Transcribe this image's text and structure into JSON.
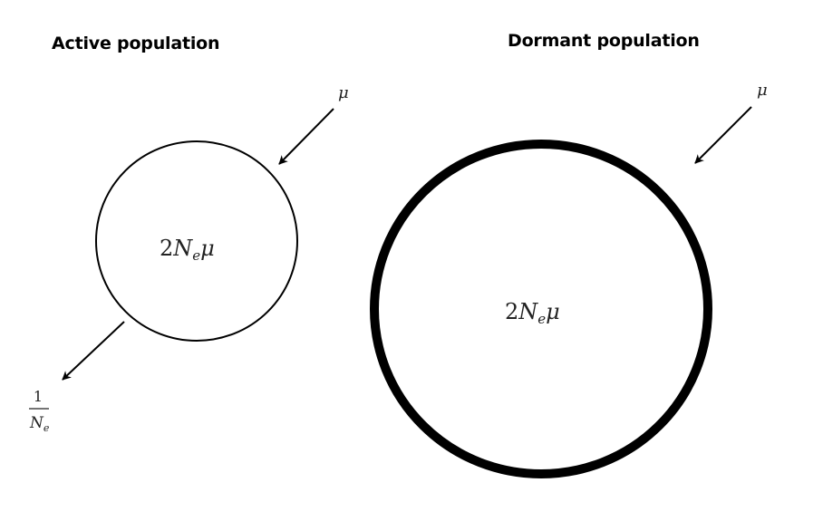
{
  "populations": {
    "active": {
      "title": "Active population",
      "inner": {
        "lead": "2",
        "symbol": "N",
        "sub": "e",
        "tail": "μ"
      },
      "inflow": "μ",
      "outflow": {
        "numerator": "1",
        "denominator": "N",
        "sub": "e"
      }
    },
    "dormant": {
      "title": "Dormant population",
      "inner": {
        "lead": "2",
        "symbol": "N",
        "sub": "e",
        "tail": "μ"
      },
      "inflow": "μ"
    }
  },
  "colors": {
    "stroke": "#000000",
    "text": "#222222",
    "background": "#ffffff"
  }
}
